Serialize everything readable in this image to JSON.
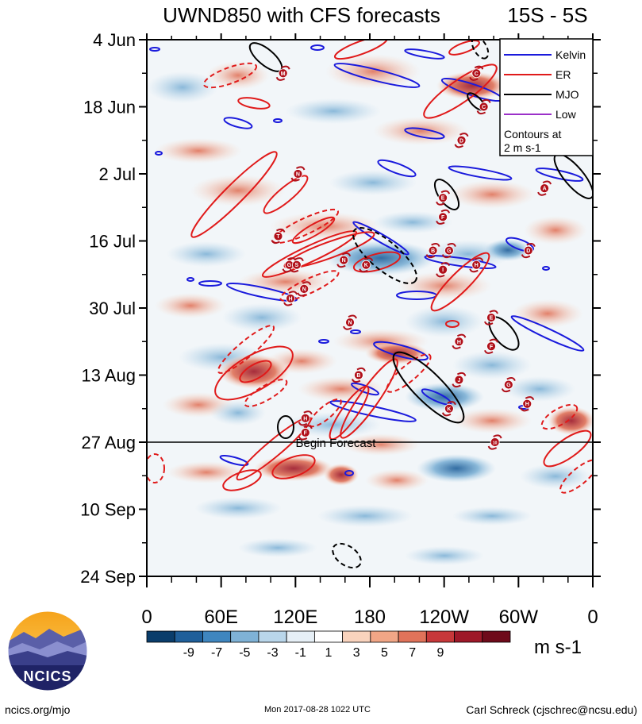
{
  "title": "UWND850 with CFS forecasts",
  "region": "15S - 5S",
  "chart_data": {
    "type": "heatmap",
    "title": "UWND850 with CFS forecasts",
    "subtitle": "15S - 5S",
    "xlabel": "",
    "ylabel": "",
    "x_ticks": [
      "0",
      "60E",
      "120E",
      "180",
      "120W",
      "60W",
      "0"
    ],
    "x_range": [
      0,
      360
    ],
    "y_ticks": [
      "4 Jun",
      "18 Jun",
      "2 Jul",
      "16 Jul",
      "30 Jul",
      "13 Aug",
      "27 Aug",
      "10 Sep",
      "24 Sep"
    ],
    "y_range_days": [
      0,
      112
    ],
    "units": "m s-1",
    "colorbar_levels": [
      "-9",
      "-7",
      "-5",
      "-3",
      "-1",
      "1",
      "3",
      "5",
      "7",
      "9"
    ],
    "colorbar_colors": [
      "#0a3d6b",
      "#1f5f9a",
      "#3f86bf",
      "#7fb2d6",
      "#b9d6ea",
      "#e6eff6",
      "#ffffff",
      "#f9d3bd",
      "#f1a686",
      "#e0735a",
      "#c7383a",
      "#9e1828",
      "#6e0a1a"
    ],
    "legend": {
      "items": [
        {
          "label": "Kelvin",
          "color": "#1a1adc"
        },
        {
          "label": "ER",
          "color": "#e01a1a"
        },
        {
          "label": "MJO",
          "color": "#000000"
        },
        {
          "label": "Low",
          "color": "#9b30c8"
        }
      ],
      "note_line1": "Contours at",
      "note_line2": "2 m s-1",
      "position": "top-right"
    },
    "forecast_start": {
      "label": "Begin Forecast",
      "day": 84
    },
    "cyclone_markers": [
      {
        "letter": "M",
        "lon": 110,
        "day": 7
      },
      {
        "letter": "C",
        "lon": 266,
        "day": 7
      },
      {
        "letter": "C",
        "lon": 272,
        "day": 14
      },
      {
        "letter": "D",
        "lon": 254,
        "day": 21
      },
      {
        "letter": "N",
        "lon": 122,
        "day": 28
      },
      {
        "letter": "A",
        "lon": 321,
        "day": 31
      },
      {
        "letter": "E",
        "lon": 239,
        "day": 33
      },
      {
        "letter": "F",
        "lon": 239,
        "day": 37
      },
      {
        "letter": "T",
        "lon": 106,
        "day": 41
      },
      {
        "letter": "B",
        "lon": 231,
        "day": 44
      },
      {
        "letter": "G",
        "lon": 244,
        "day": 44
      },
      {
        "letter": "D",
        "lon": 308,
        "day": 44
      },
      {
        "letter": "G",
        "lon": 115,
        "day": 47
      },
      {
        "letter": "S",
        "lon": 121,
        "day": 47
      },
      {
        "letter": "N",
        "lon": 159,
        "day": 46
      },
      {
        "letter": "K",
        "lon": 177,
        "day": 47
      },
      {
        "letter": "H",
        "lon": 266,
        "day": 47
      },
      {
        "letter": "I",
        "lon": 239,
        "day": 48
      },
      {
        "letter": "N",
        "lon": 127,
        "day": 52
      },
      {
        "letter": "H",
        "lon": 116,
        "day": 54
      },
      {
        "letter": "E",
        "lon": 278,
        "day": 58
      },
      {
        "letter": "N",
        "lon": 164,
        "day": 59
      },
      {
        "letter": "H",
        "lon": 252,
        "day": 63
      },
      {
        "letter": "F",
        "lon": 278,
        "day": 64
      },
      {
        "letter": "B",
        "lon": 171,
        "day": 70
      },
      {
        "letter": "J",
        "lon": 252,
        "day": 71
      },
      {
        "letter": "G",
        "lon": 292,
        "day": 72
      },
      {
        "letter": "H",
        "lon": 307,
        "day": 76
      },
      {
        "letter": "K",
        "lon": 244,
        "day": 77
      },
      {
        "letter": "H",
        "lon": 128,
        "day": 79
      },
      {
        "letter": "F",
        "lon": 128,
        "day": 82
      },
      {
        "letter": "10",
        "lon": 281,
        "day": 84
      }
    ]
  },
  "footer": {
    "logo_text": "NCICS",
    "website": "ncics.org/mjo",
    "timestamp": "Mon 2017-08-28 1022 UTC",
    "author": "Carl Schreck (cjschrec@ncsu.edu)"
  },
  "icons": {
    "logo": "ncics-mountain-logo-icon",
    "cyclone": "hurricane-symbol-icon"
  }
}
